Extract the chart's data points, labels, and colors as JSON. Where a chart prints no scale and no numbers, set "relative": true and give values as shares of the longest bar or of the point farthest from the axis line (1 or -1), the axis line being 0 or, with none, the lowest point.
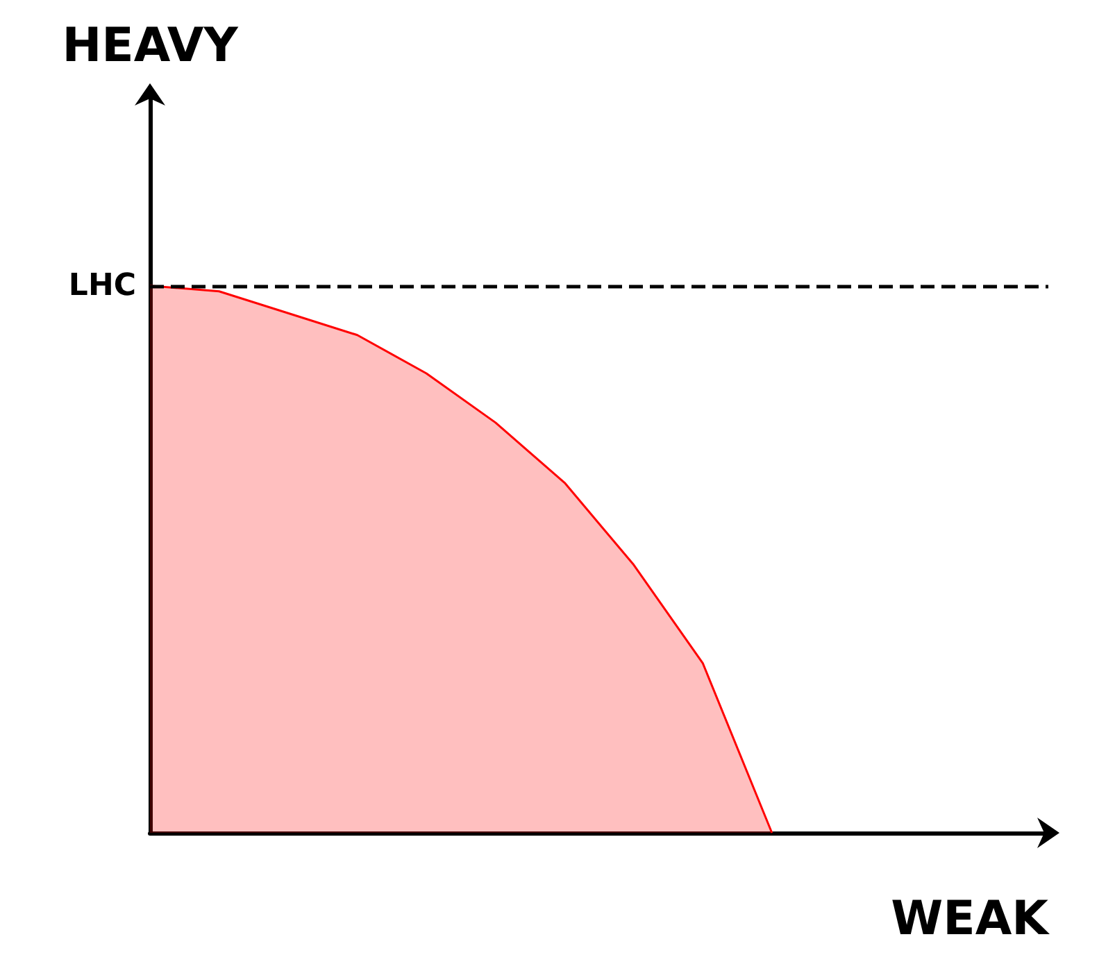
{
  "chart_data": {
    "type": "area",
    "relative": true,
    "xlabel": "WEAK",
    "ylabel": "HEAVY",
    "categories": [
      null,
      null,
      null,
      null,
      null,
      null,
      null,
      null,
      null,
      null,
      null,
      null,
      null,
      null
    ],
    "series": [
      {
        "color": "#ff0000",
        "values": [
          1.0,
          0.99,
          0.95,
          0.91,
          0.84,
          0.75,
          0.64,
          0.49,
          0.31,
          0,
          null,
          null,
          null,
          null
        ]
      }
    ],
    "ref_lines": [
      {
        "axis": "y",
        "value": 1,
        "label": "LHC",
        "color": "#000000",
        "line_style": "dashed"
      }
    ],
    "grid": false
  }
}
